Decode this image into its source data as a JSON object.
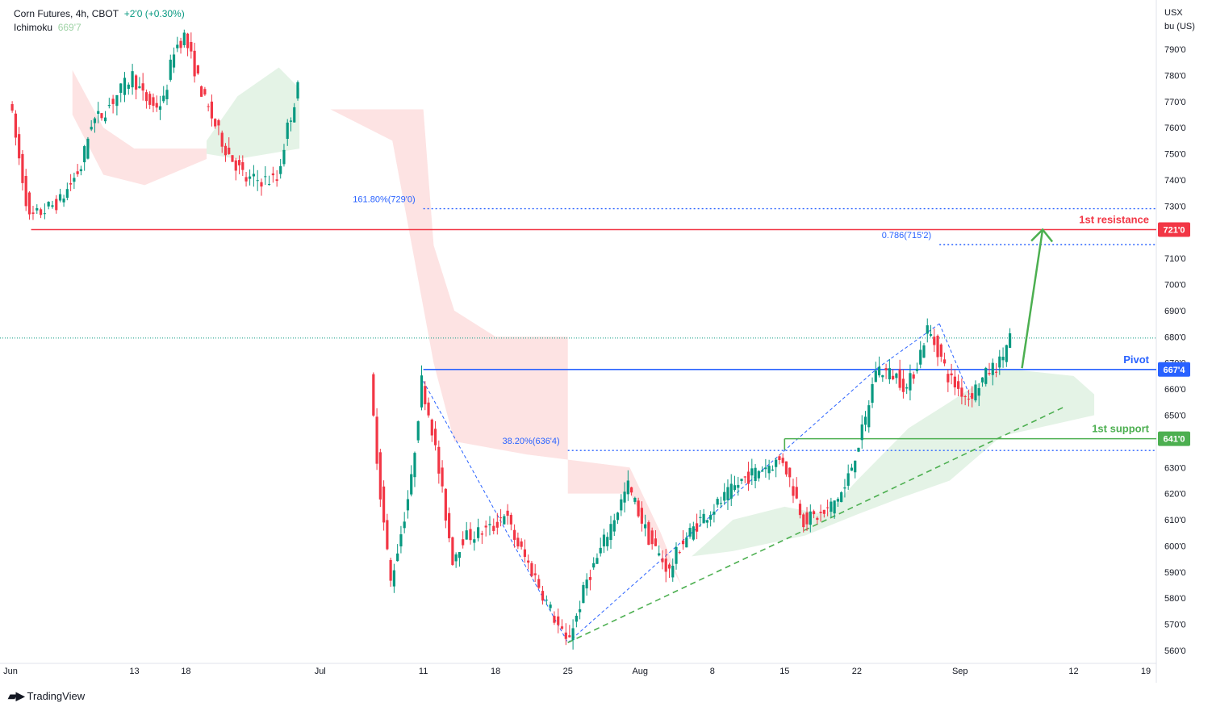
{
  "header": {
    "symbol_line": "Corn Futures, 4h, CBOT",
    "change": "+2'0 (+0.30%)",
    "indicator_name": "Ichimoku",
    "indicator_value": "669'7"
  },
  "axis_unit": {
    "line1": "USX",
    "line2": "bu (US)"
  },
  "brand": "TradingView",
  "colors": {
    "up": "#089981",
    "down": "#f23645",
    "resistance": "#f23645",
    "pivot": "#2962ff",
    "support": "#4caf50",
    "fib": "#2962ff",
    "cloud_bear": "#fde3e3",
    "cloud_bull": "#e4f3e6",
    "arrow": "#4caf50"
  },
  "chart_data": {
    "type": "candlestick",
    "timeframe": "4h",
    "y_unit": "USX/bu",
    "ylim": [
      555,
      800
    ],
    "y_ticks": [
      {
        "value": 560,
        "label": "560'0"
      },
      {
        "value": 570,
        "label": "570'0"
      },
      {
        "value": 580,
        "label": "580'0"
      },
      {
        "value": 590,
        "label": "590'0"
      },
      {
        "value": 600,
        "label": "600'0"
      },
      {
        "value": 610,
        "label": "610'0"
      },
      {
        "value": 620,
        "label": "620'0"
      },
      {
        "value": 630,
        "label": "630'0"
      },
      {
        "value": 640,
        "label": "640'0"
      },
      {
        "value": 650,
        "label": "650'0"
      },
      {
        "value": 660,
        "label": "660'0"
      },
      {
        "value": 670,
        "label": "670'0"
      },
      {
        "value": 680,
        "label": "680'0"
      },
      {
        "value": 690,
        "label": "690'0"
      },
      {
        "value": 700,
        "label": "700'0"
      },
      {
        "value": 710,
        "label": "710'0"
      },
      {
        "value": 720,
        "label": "720'0"
      },
      {
        "value": 730,
        "label": "730'0"
      },
      {
        "value": 740,
        "label": "740'0"
      },
      {
        "value": 750,
        "label": "750'0"
      },
      {
        "value": 760,
        "label": "760'0"
      },
      {
        "value": 770,
        "label": "770'0"
      },
      {
        "value": 780,
        "label": "780'0"
      },
      {
        "value": 790,
        "label": "790'0"
      }
    ],
    "x_ticks": [
      {
        "date": "2022-06-01",
        "label": "Jun"
      },
      {
        "date": "2022-06-13",
        "label": "13"
      },
      {
        "date": "2022-06-18",
        "label": "18"
      },
      {
        "date": "2022-07-01",
        "label": "Jul"
      },
      {
        "date": "2022-07-11",
        "label": "11"
      },
      {
        "date": "2022-07-18",
        "label": "18"
      },
      {
        "date": "2022-07-25",
        "label": "25"
      },
      {
        "date": "2022-08-01",
        "label": "Aug"
      },
      {
        "date": "2022-08-08",
        "label": "8"
      },
      {
        "date": "2022-08-15",
        "label": "15"
      },
      {
        "date": "2022-08-22",
        "label": "22"
      },
      {
        "date": "2022-09-01",
        "label": "Sep"
      },
      {
        "date": "2022-09-12",
        "label": "12"
      },
      {
        "date": "2022-09-19",
        "label": "19"
      }
    ],
    "price_path": [
      {
        "date": "2022-06-01",
        "value": 772
      },
      {
        "date": "2022-06-02",
        "value": 748
      },
      {
        "date": "2022-06-03",
        "value": 725
      },
      {
        "date": "2022-06-06",
        "value": 732
      },
      {
        "date": "2022-06-08",
        "value": 745
      },
      {
        "date": "2022-06-09",
        "value": 762
      },
      {
        "date": "2022-06-10",
        "value": 765
      },
      {
        "date": "2022-06-13",
        "value": 780
      },
      {
        "date": "2022-06-14",
        "value": 772
      },
      {
        "date": "2022-06-15",
        "value": 768
      },
      {
        "date": "2022-06-16",
        "value": 770
      },
      {
        "date": "2022-06-17",
        "value": 790
      },
      {
        "date": "2022-06-18",
        "value": 795
      },
      {
        "date": "2022-06-20",
        "value": 770
      },
      {
        "date": "2022-06-22",
        "value": 752
      },
      {
        "date": "2022-06-24",
        "value": 740
      },
      {
        "date": "2022-06-27",
        "value": 740
      },
      {
        "date": "2022-06-28",
        "value": 760
      },
      {
        "date": "2022-06-29",
        "value": 775
      },
      {
        "date": "2022-07-06",
        "value": 663
      },
      {
        "date": "2022-07-07",
        "value": 620
      },
      {
        "date": "2022-07-08",
        "value": 586
      },
      {
        "date": "2022-07-09",
        "value": 605
      },
      {
        "date": "2022-07-10",
        "value": 625
      },
      {
        "date": "2022-07-11",
        "value": 663
      },
      {
        "date": "2022-07-12",
        "value": 645
      },
      {
        "date": "2022-07-13",
        "value": 620
      },
      {
        "date": "2022-07-14",
        "value": 595
      },
      {
        "date": "2022-07-15",
        "value": 603
      },
      {
        "date": "2022-07-18",
        "value": 607
      },
      {
        "date": "2022-07-19",
        "value": 613
      },
      {
        "date": "2022-07-20",
        "value": 603
      },
      {
        "date": "2022-07-22",
        "value": 588
      },
      {
        "date": "2022-07-25",
        "value": 563
      },
      {
        "date": "2022-07-26",
        "value": 573
      },
      {
        "date": "2022-07-27",
        "value": 587
      },
      {
        "date": "2022-07-28",
        "value": 595
      },
      {
        "date": "2022-07-29",
        "value": 605
      },
      {
        "date": "2022-07-31",
        "value": 623
      },
      {
        "date": "2022-08-02",
        "value": 603
      },
      {
        "date": "2022-08-04",
        "value": 590
      },
      {
        "date": "2022-08-05",
        "value": 600
      },
      {
        "date": "2022-08-07",
        "value": 610
      },
      {
        "date": "2022-08-09",
        "value": 617
      },
      {
        "date": "2022-08-11",
        "value": 625
      },
      {
        "date": "2022-08-13",
        "value": 630
      },
      {
        "date": "2022-08-15",
        "value": 633
      },
      {
        "date": "2022-08-17",
        "value": 610
      },
      {
        "date": "2022-08-19",
        "value": 612
      },
      {
        "date": "2022-08-21",
        "value": 622
      },
      {
        "date": "2022-08-23",
        "value": 648
      },
      {
        "date": "2022-08-24",
        "value": 668
      },
      {
        "date": "2022-08-26",
        "value": 665
      },
      {
        "date": "2022-08-27",
        "value": 660
      },
      {
        "date": "2022-08-28",
        "value": 670
      },
      {
        "date": "2022-08-29",
        "value": 683
      },
      {
        "date": "2022-08-30",
        "value": 675
      },
      {
        "date": "2022-08-31",
        "value": 665
      },
      {
        "date": "2022-09-01",
        "value": 660
      },
      {
        "date": "2022-09-02",
        "value": 657
      },
      {
        "date": "2022-09-04",
        "value": 667
      },
      {
        "date": "2022-09-05",
        "value": 670
      },
      {
        "date": "2022-09-06",
        "value": 680
      }
    ],
    "last_price_line": 679.5,
    "levels": [
      {
        "name": "resistance",
        "label": "1st resistance",
        "value": 721.0,
        "tag": "721'0",
        "from": "2022-06-03"
      },
      {
        "name": "pivot",
        "label": "Pivot",
        "value": 667.5,
        "tag": "667'4",
        "from": "2022-07-11"
      },
      {
        "name": "support",
        "label": "1st support",
        "value": 641.0,
        "tag": "641'0",
        "from": "2022-08-15"
      }
    ],
    "fib_levels": [
      {
        "name": "fib-161",
        "label": "161.80%(729'0)",
        "value": 729.0,
        "from": "2022-07-11"
      },
      {
        "name": "fib-786",
        "label": "0.786(715'2)",
        "value": 715.25,
        "from": "2022-08-30"
      },
      {
        "name": "fib-38",
        "label": "38.20%(636'4)",
        "value": 636.5,
        "from": "2022-07-25"
      }
    ],
    "fib_swing": [
      {
        "date": "2022-07-11",
        "value": 663
      },
      {
        "date": "2022-07-25",
        "value": 563
      },
      {
        "date": "2022-08-24",
        "value": 668
      },
      {
        "date": "2022-08-30",
        "value": 685
      }
    ],
    "trendline": {
      "start": {
        "date": "2022-07-25",
        "value": 563
      },
      "end": {
        "date": "2022-09-11",
        "value": 653
      }
    },
    "projection_arrow": {
      "start": {
        "date": "2022-09-07",
        "value": 668
      },
      "end": {
        "date": "2022-09-09",
        "value": 721
      }
    },
    "grid": false
  }
}
